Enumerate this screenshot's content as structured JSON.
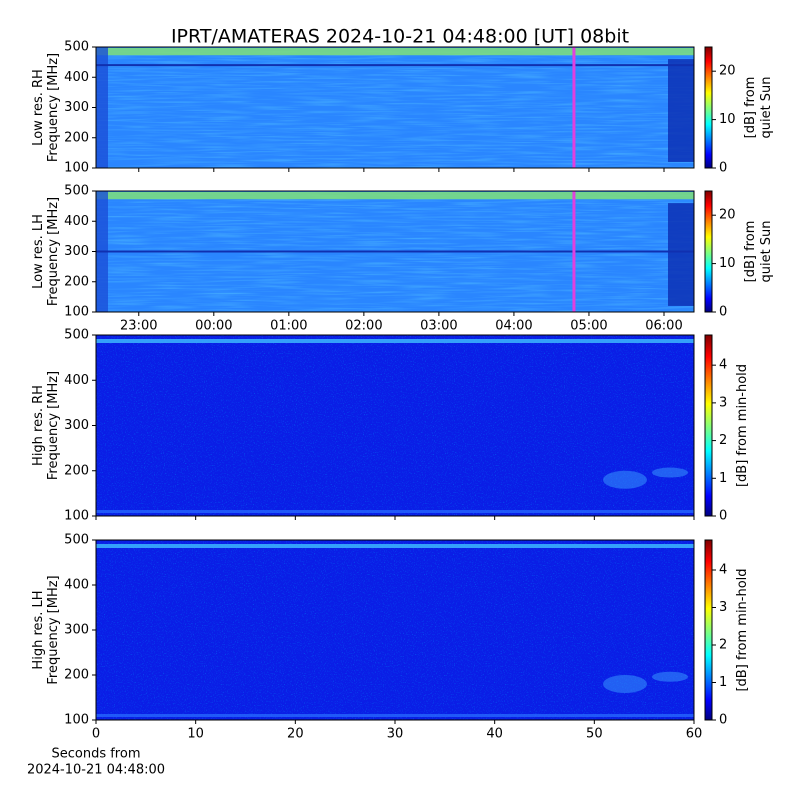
{
  "title": "IPRT/AMATERAS 2024-10-21 04:48:00 [UT]   08bit",
  "chart_data": [
    {
      "type": "heatmap",
      "ylabel": [
        "Low res. RH",
        "Frequency [MHz]"
      ],
      "ylim": [
        100,
        500
      ],
      "yticks": [
        100,
        200,
        300,
        400,
        500
      ],
      "xlim": [
        22.43,
        30.4
      ],
      "marker_x": 28.8,
      "marker_color": "#e040e0",
      "colorbar": {
        "label": [
          "[dB] from",
          "quiet Sun"
        ],
        "lim": [
          0,
          25
        ],
        "ticks": [
          0,
          10,
          20
        ]
      }
    },
    {
      "type": "heatmap",
      "ylabel": [
        "Low res. LH",
        "Frequency [MHz]"
      ],
      "ylim": [
        100,
        500
      ],
      "yticks": [
        100,
        200,
        300,
        400,
        500
      ],
      "xlim": [
        22.43,
        30.4
      ],
      "marker_x": 28.8,
      "marker_color": "#e040e0",
      "xticks": [
        {
          "value": 23,
          "label": "23:00"
        },
        {
          "value": 24,
          "label": "00:00"
        },
        {
          "value": 25,
          "label": "01:00"
        },
        {
          "value": 26,
          "label": "02:00"
        },
        {
          "value": 27,
          "label": "03:00"
        },
        {
          "value": 28,
          "label": "04:00"
        },
        {
          "value": 29,
          "label": "05:00"
        },
        {
          "value": 30,
          "label": "06:00"
        }
      ],
      "colorbar": {
        "label": [
          "[dB] from",
          "quiet Sun"
        ],
        "lim": [
          0,
          25
        ],
        "ticks": [
          0,
          10,
          20
        ]
      }
    },
    {
      "type": "heatmap",
      "ylabel": [
        "High res. RH",
        "Frequency [MHz]"
      ],
      "ylim": [
        100,
        500
      ],
      "yticks": [
        100,
        200,
        300,
        400,
        500
      ],
      "xlim": [
        0,
        60
      ],
      "colorbar": {
        "label": [
          "[dB] from min-hold"
        ],
        "lim": [
          0,
          4.8
        ],
        "ticks": [
          0,
          1,
          2,
          3,
          4
        ]
      }
    },
    {
      "type": "heatmap",
      "ylabel": [
        "High res. LH",
        "Frequency [MHz]"
      ],
      "ylim": [
        100,
        500
      ],
      "yticks": [
        100,
        200,
        300,
        400,
        500
      ],
      "xlim": [
        0,
        60
      ],
      "xticks": [
        0,
        10,
        20,
        30,
        40,
        50,
        60
      ],
      "xlabel": [
        "Seconds from",
        "2024-10-21 04:48:00"
      ],
      "colorbar": {
        "label": [
          "[dB] from min-hold"
        ],
        "lim": [
          0,
          4.8
        ],
        "ticks": [
          0,
          1,
          2,
          3,
          4
        ]
      }
    }
  ]
}
